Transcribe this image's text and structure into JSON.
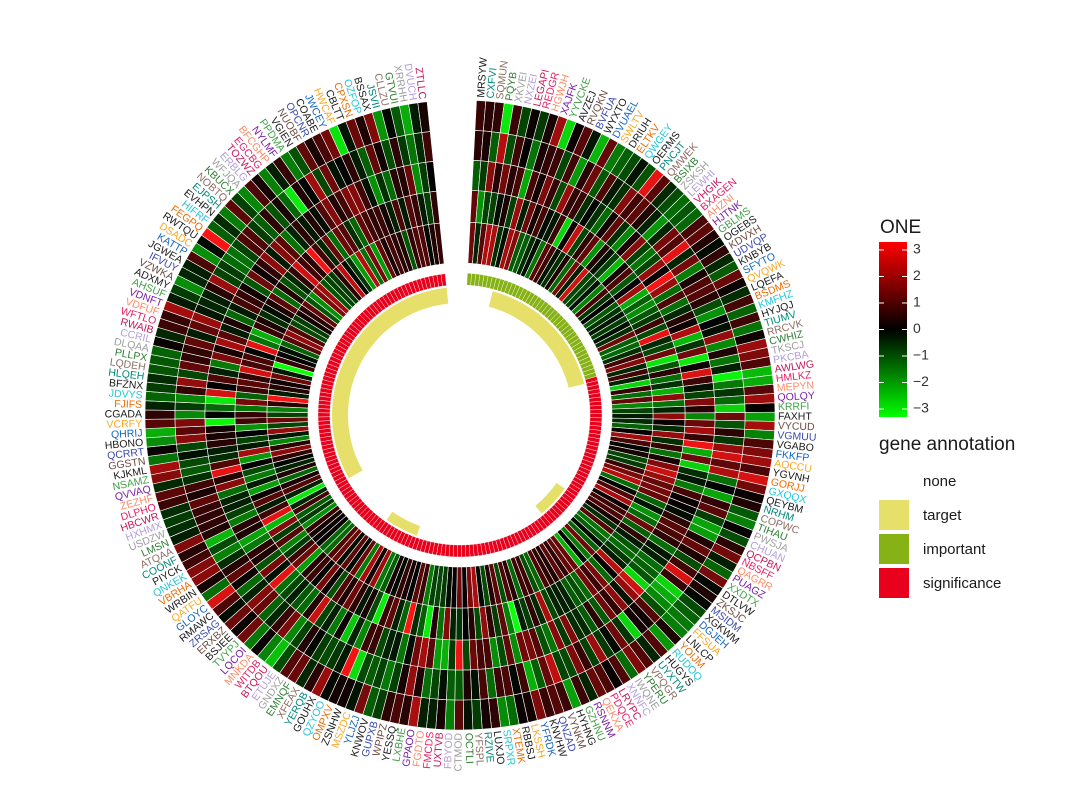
{
  "chart_data": {
    "type": "heatmap",
    "layout": "circular",
    "rings": 5,
    "gap_after_index": 41,
    "colorbar": {
      "title": "ONE",
      "min": -3.3,
      "max": 3.3,
      "ticks": [
        3,
        2,
        1,
        0,
        -1,
        -2,
        -3
      ],
      "tick_labels": [
        "3",
        "2",
        "1",
        "0",
        "−1",
        "−2",
        "−3"
      ],
      "stops": [
        "#00ff00",
        "#000000",
        "#ff0000"
      ]
    },
    "annotation_legend": {
      "title": "gene annotation",
      "items": [
        {
          "label": "none",
          "color": "#ffffff"
        },
        {
          "label": "target",
          "color": "#e6e06a"
        },
        {
          "label": "important",
          "color": "#86b216"
        },
        {
          "label": "significance",
          "color": "#e8001c"
        }
      ]
    },
    "label_colors": [
      "#1a1a1a",
      "#1a1a1a",
      "#1a1a1a",
      "#1a1a1a",
      "#2e7d32",
      "#c2185b",
      "#7b1fa2",
      "#6d4c41",
      "#1565c0",
      "#ef6c00",
      "#00897b",
      "#9e9e9e",
      "#e91e63",
      "#43a047",
      "#3949ab",
      "#f9a825",
      "#26c6da",
      "#8d6e63",
      "#b39ddb",
      "#ff8a65"
    ],
    "genes": [
      "MRSYW",
      "CXFVI",
      "SQMUN",
      "PQYB",
      "XKVEI",
      "NXZEI",
      "LEGAPI",
      "REDGR",
      "HGWJH",
      "XAJFK",
      "YYVCKE",
      "AVZEJ",
      "RVQKN",
      "BVFUA",
      "WYXTO",
      "DVUAEL",
      "SWLTV",
      "DRIUH",
      "ELTKV",
      "QWGEY",
      "OERMS",
      "PNCJT",
      "QMWEK",
      "BSIXB",
      "ZSKSH",
      "LEWHI",
      "VHGIK",
      "BXAGEN",
      "AHZNI",
      "HJTNK",
      "GBLMS",
      "OGEBS",
      "KDVXH",
      "UDVQP",
      "KNBYB",
      "SFYTO",
      "QVQWK",
      "LQEFA",
      "BSDMS",
      "KMFHZ",
      "HYJQJ",
      "TIUMV",
      "RRCVK",
      "CWHIZ",
      "TKSCJ",
      "PKCBA",
      "AWLWG",
      "HMLKZ",
      "MEPYN",
      "QOLQY",
      "KRRFI",
      "FAXHT",
      "VYCUD",
      "VGMUU",
      "VGABO",
      "FKKFP",
      "AQCCU",
      "YGVNH",
      "GORJJ",
      "GXQQX",
      "QEYBM",
      "NRHM",
      "COPWC",
      "TIHAU",
      "PWSJA",
      "CHUAN",
      "QCPBN",
      "NBSFF",
      "QAGRR",
      "PUAGZ",
      "XXDTX",
      "DTLVW",
      "ZKSJC",
      "MSIDM",
      "XGKWM",
      "DGJEH",
      "FFSUA",
      "LNLCP",
      "YOIJM",
      "RUDOQ",
      "HUGYS",
      "UYXTW",
      "VPQGR",
      "YPERU",
      "IWQNE",
      "XNNFC",
      "LRYPC",
      "PDQCE",
      "QEKXA",
      "RSNNM",
      "GZHNU",
      "HYHNG",
      "VYNKM",
      "QNZAD",
      "KNVHW",
      "YFRDK",
      "LKSSH",
      "RBBSJ",
      "XTEMK",
      "SRPXR",
      "LUXJO",
      "RZIVE",
      "YFSPL",
      "OCTLI",
      "CTMOD",
      "FBYOD",
      "UXTVB",
      "FMCDS",
      "FGDTO",
      "GPAOO",
      "LXBHE",
      "YESSQ",
      "WPIPZ",
      "GUPXB",
      "KNWOV",
      "YLJZJ",
      "MSZDC",
      "ZSNHW",
      "OMPXV",
      "QZYOO",
      "GOUHX",
      "YERQB",
      "XFEAX",
      "EMNQF",
      "GNDXZ",
      "ETUJE",
      "BTQOU",
      "WITDB",
      "MNKDA",
      "LQCOI",
      "TVYPJ",
      "BSJEE",
      "ERXBZ",
      "ZRSAG",
      "RMAWC",
      "GLOYC",
      "QATFU",
      "WRBIN",
      "VBRHA",
      "QNKEK",
      "PIYCK",
      "COONF",
      "ATQAA",
      "LMSN",
      "USDZW",
      "HXHMX",
      "HBCWR",
      "DLPHO",
      "ZEZHF",
      "QVVAQ",
      "NSAMZ",
      "KJKML",
      "GGSTN",
      "QCRRT",
      "HBONO",
      "QHRIJ",
      "VCRFY",
      "CGADA",
      "FJIFS",
      "JDVYS",
      "BFZNX",
      "HLQEH",
      "LQDEH",
      "PLLPX",
      "DLQAA",
      "CCRIL",
      "RWAIB",
      "WFTLO",
      "VDFUF",
      "VDNFT",
      "AHSUF",
      "ADXMY",
      "VZWKA",
      "IFVUY",
      "JGWEA",
      "KATTP",
      "DSADC",
      "RWTQU",
      "FEGPQ",
      "HIFRF",
      "EVHPN",
      "EJPSH",
      "NOBTQ",
      "KBUCX",
      "WFJQA",
      "ERBLG",
      "TOZWZ",
      "EGCBG",
      "BFCGHP",
      "NYLMF",
      "PPDMA",
      "VGIEN",
      "NUOBF",
      "OPCNR",
      "COABE",
      "JWCEY",
      "HWCAF",
      "CBLTT",
      "CPXSN",
      "OZFOP",
      "BSSAX",
      "JSVII",
      "CLLZU",
      "GTVUI",
      "XRRHH",
      "DVUCH",
      "ZTLLC"
    ]
  }
}
